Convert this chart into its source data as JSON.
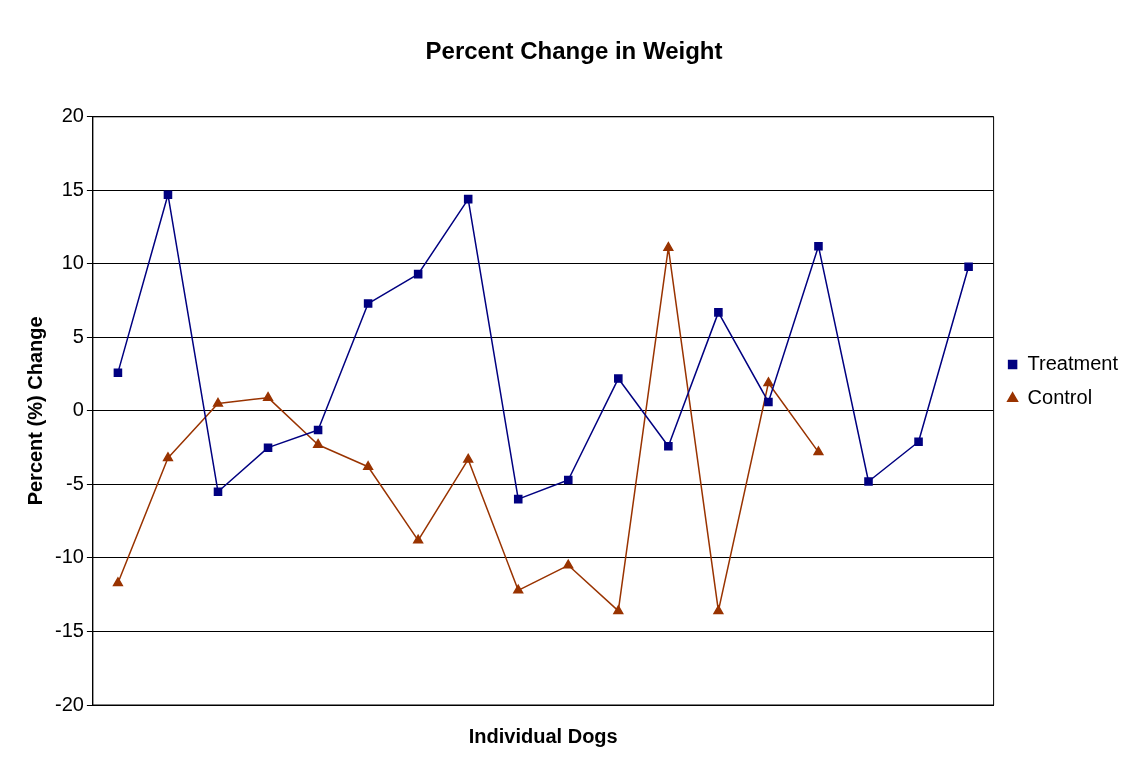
{
  "chart_data": {
    "type": "line",
    "title": "Percent Change in Weight",
    "xlabel": "Individual Dogs",
    "ylabel": "Percent (%) Change",
    "categories": [
      null,
      null,
      null,
      null,
      null,
      null,
      null,
      null,
      null,
      null,
      null,
      null,
      null,
      null,
      null,
      null,
      null,
      null
    ],
    "series": [
      {
        "name": "Treatment",
        "color": "#000080",
        "marker": "square",
        "values": [
          2.6,
          14.7,
          -5.5,
          -2.5,
          -1.3,
          7.3,
          9.3,
          14.4,
          -6.0,
          -4.7,
          2.2,
          -2.4,
          6.7,
          0.6,
          11.2,
          -4.8,
          -2.1,
          9.8
        ]
      },
      {
        "name": "Control",
        "color": "#993300",
        "marker": "triangle",
        "values": [
          -11.7,
          -3.2,
          0.5,
          0.9,
          -2.3,
          -3.8,
          -8.8,
          -3.3,
          -12.2,
          -10.5,
          -13.6,
          11.1,
          -13.6,
          1.9,
          -2.8,
          null,
          null,
          null
        ]
      }
    ],
    "ylim": [
      -20,
      20
    ],
    "yticks": [
      -20,
      -15,
      -10,
      -5,
      0,
      5,
      10,
      15,
      20
    ],
    "grid": "y",
    "legend": "right",
    "line_style": "solid"
  }
}
